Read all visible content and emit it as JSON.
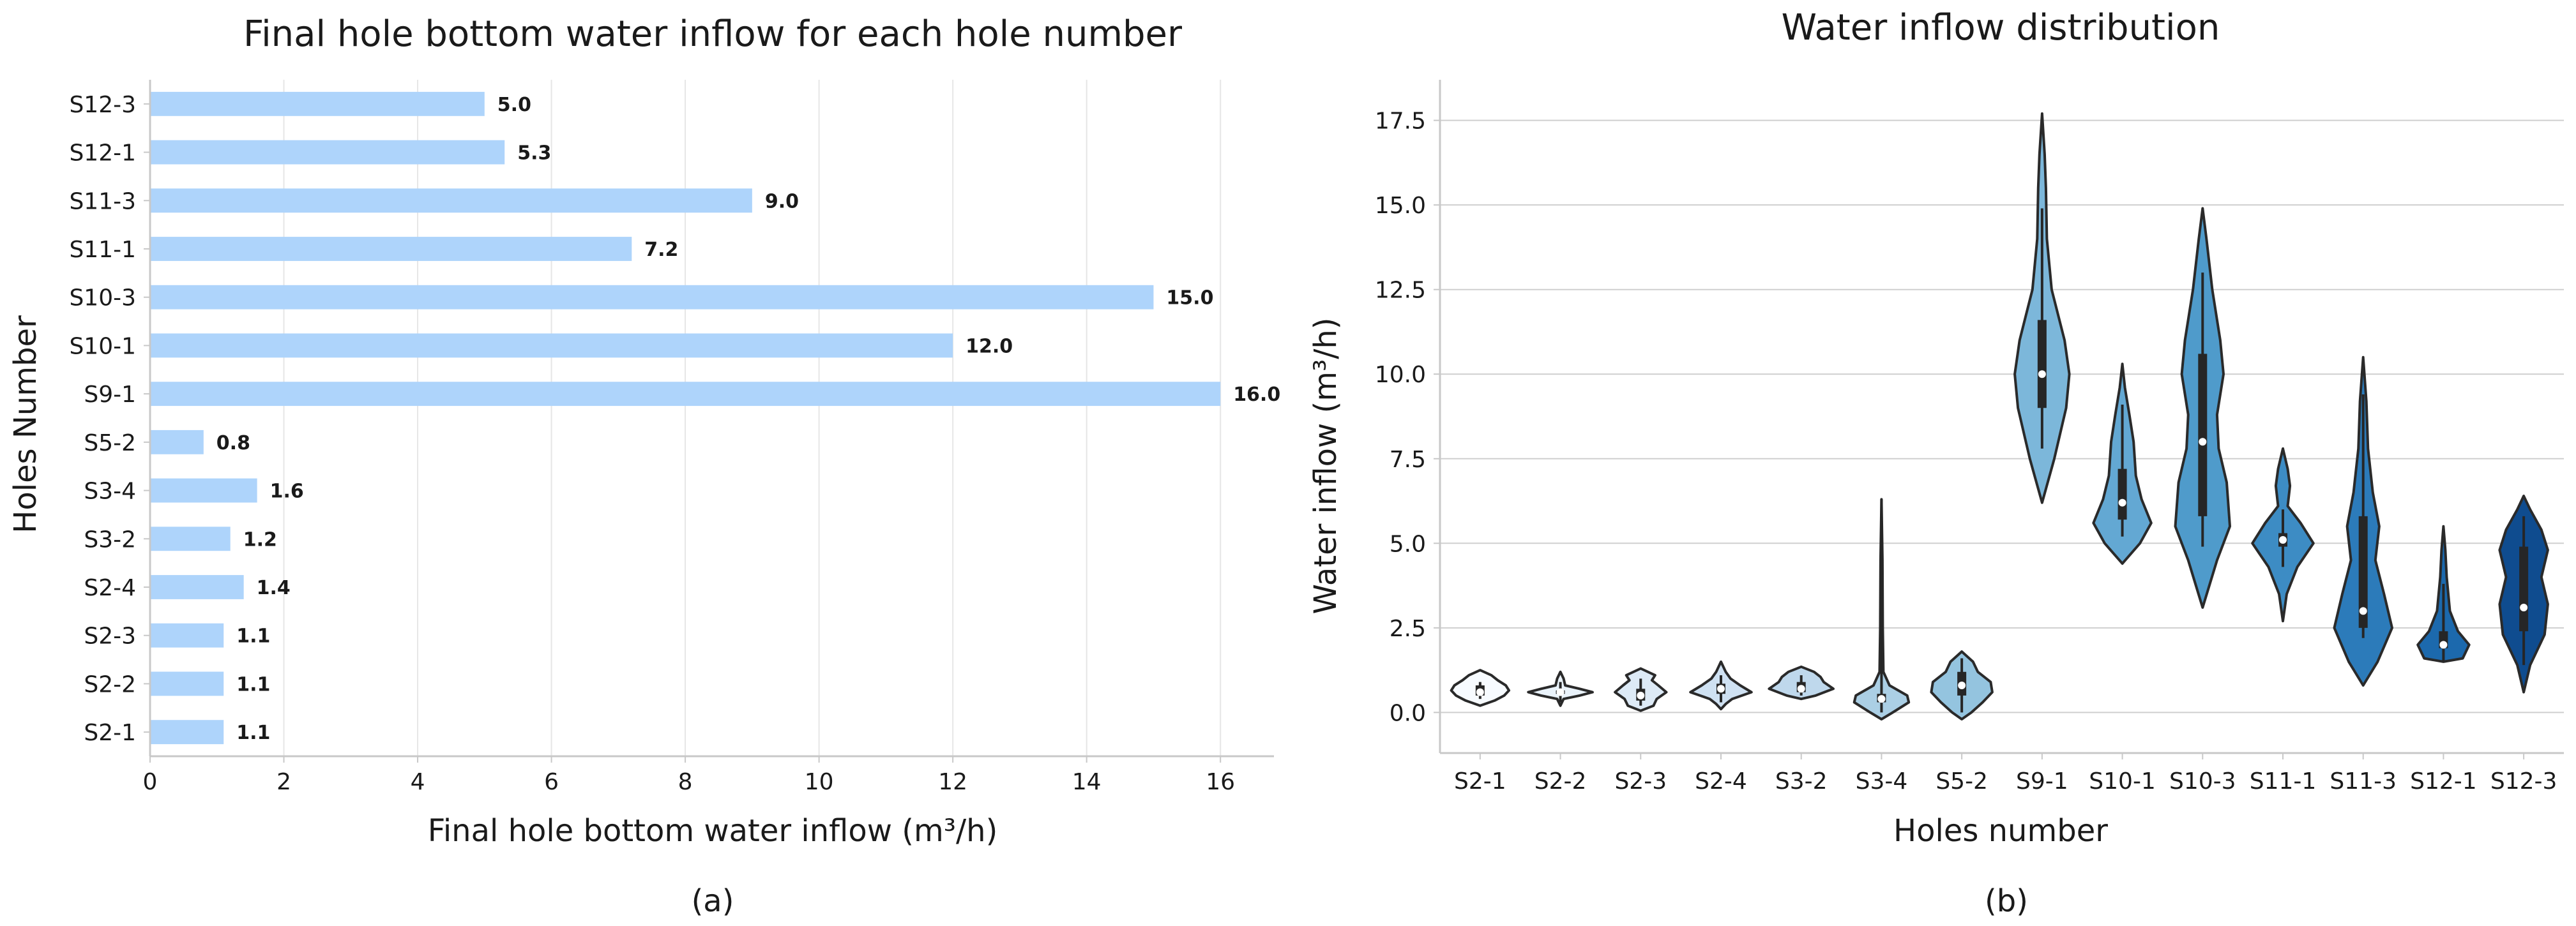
{
  "chart_data": [
    {
      "type": "bar",
      "orientation": "horizontal",
      "title": "Final hole bottom water inflow for each hole number",
      "xlabel": "Final hole bottom water inflow (m³/h)",
      "ylabel": "Holes Number",
      "caption": "(a)",
      "categories": [
        "S2-1",
        "S2-2",
        "S2-3",
        "S2-4",
        "S3-2",
        "S3-4",
        "S5-2",
        "S9-1",
        "S10-1",
        "S10-3",
        "S11-1",
        "S11-3",
        "S12-1",
        "S12-3"
      ],
      "values": [
        1.1,
        1.1,
        1.1,
        1.4,
        1.2,
        1.6,
        0.8,
        16.0,
        12.0,
        15.0,
        7.2,
        9.0,
        5.3,
        5.0
      ],
      "value_labels": [
        "1.1",
        "1.1",
        "1.1",
        "1.4",
        "1.2",
        "1.6",
        "0.8",
        "16.0",
        "12.0",
        "15.0",
        "7.2",
        "9.0",
        "5.3",
        "5.0"
      ],
      "xlim": [
        0,
        16.8
      ],
      "xticks": [
        0,
        2,
        4,
        6,
        8,
        10,
        12,
        14,
        16
      ],
      "xtick_labels": [
        "0",
        "2",
        "4",
        "6",
        "8",
        "10",
        "12",
        "14",
        "16"
      ],
      "grid": "vertical",
      "bar_color": "#aed4fb"
    },
    {
      "type": "violin",
      "title": "Water inflow distribution",
      "xlabel": "Holes number",
      "ylabel": "Water inflow (m³/h)",
      "caption": "(b)",
      "categories": [
        "S2-1",
        "S2-2",
        "S2-3",
        "S2-4",
        "S3-2",
        "S3-4",
        "S5-2",
        "S9-1",
        "S10-1",
        "S10-3",
        "S11-1",
        "S11-3",
        "S12-1",
        "S12-3"
      ],
      "ylim": [
        -1.2,
        18.7
      ],
      "yticks": [
        0.0,
        2.5,
        5.0,
        7.5,
        10.0,
        12.5,
        15.0,
        17.5
      ],
      "ytick_labels": [
        "0.0",
        "2.5",
        "5.0",
        "7.5",
        "10.0",
        "12.5",
        "15.0",
        "17.5"
      ],
      "grid": "horizontal",
      "violins": [
        {
          "name": "S2-1",
          "color": "#f7fbff",
          "median": 0.6,
          "q1": 0.5,
          "q3": 0.8,
          "whisker_low": 0.4,
          "whisker_high": 0.9,
          "profile": [
            [
              0.2,
              0.0
            ],
            [
              0.35,
              0.45
            ],
            [
              0.5,
              0.75
            ],
            [
              0.65,
              0.9
            ],
            [
              0.8,
              0.8
            ],
            [
              0.95,
              0.55
            ],
            [
              1.1,
              0.35
            ],
            [
              1.25,
              0.0
            ]
          ]
        },
        {
          "name": "S2-2",
          "color": "#eaf3fb",
          "median": 0.6,
          "q1": 0.55,
          "q3": 0.65,
          "whisker_low": 0.3,
          "whisker_high": 0.9,
          "profile": [
            [
              0.2,
              0.0
            ],
            [
              0.4,
              0.1
            ],
            [
              0.5,
              0.6
            ],
            [
              0.6,
              1.0
            ],
            [
              0.7,
              0.6
            ],
            [
              0.8,
              0.15
            ],
            [
              1.0,
              0.1
            ],
            [
              1.2,
              0.0
            ]
          ]
        },
        {
          "name": "S2-3",
          "color": "#ddeaf6",
          "median": 0.5,
          "q1": 0.35,
          "q3": 0.7,
          "whisker_low": 0.2,
          "whisker_high": 1.0,
          "profile": [
            [
              0.05,
              0.0
            ],
            [
              0.2,
              0.4
            ],
            [
              0.4,
              0.5
            ],
            [
              0.6,
              0.8
            ],
            [
              0.8,
              0.55
            ],
            [
              0.95,
              0.35
            ],
            [
              1.1,
              0.45
            ],
            [
              1.3,
              0.0
            ]
          ]
        },
        {
          "name": "S2-4",
          "color": "#cfe1f2",
          "median": 0.7,
          "q1": 0.55,
          "q3": 0.85,
          "whisker_low": 0.3,
          "whisker_high": 1.1,
          "profile": [
            [
              0.1,
              0.0
            ],
            [
              0.25,
              0.15
            ],
            [
              0.4,
              0.35
            ],
            [
              0.6,
              0.95
            ],
            [
              0.8,
              0.6
            ],
            [
              1.0,
              0.3
            ],
            [
              1.2,
              0.15
            ],
            [
              1.5,
              0.0
            ]
          ]
        },
        {
          "name": "S3-2",
          "color": "#bfd8ec",
          "median": 0.7,
          "q1": 0.6,
          "q3": 0.9,
          "whisker_low": 0.5,
          "whisker_high": 1.1,
          "profile": [
            [
              0.4,
              0.0
            ],
            [
              0.5,
              0.45
            ],
            [
              0.7,
              1.0
            ],
            [
              0.9,
              0.7
            ],
            [
              1.05,
              0.6
            ],
            [
              1.2,
              0.4
            ],
            [
              1.35,
              0.0
            ]
          ]
        },
        {
          "name": "S3-4",
          "color": "#abcfe5",
          "median": 0.4,
          "q1": 0.3,
          "q3": 0.55,
          "whisker_low": 0.0,
          "whisker_high": 6.3,
          "profile": [
            [
              -0.2,
              0.0
            ],
            [
              0.0,
              0.35
            ],
            [
              0.3,
              0.85
            ],
            [
              0.5,
              0.8
            ],
            [
              0.8,
              0.25
            ],
            [
              1.2,
              0.06
            ],
            [
              2.5,
              0.04
            ],
            [
              4.5,
              0.03
            ],
            [
              6.3,
              0.0
            ]
          ]
        },
        {
          "name": "S5-2",
          "color": "#94c4df",
          "median": 0.8,
          "q1": 0.5,
          "q3": 1.2,
          "whisker_low": 0.0,
          "whisker_high": 1.6,
          "profile": [
            [
              -0.2,
              0.0
            ],
            [
              0.0,
              0.3
            ],
            [
              0.3,
              0.65
            ],
            [
              0.6,
              0.95
            ],
            [
              0.9,
              0.9
            ],
            [
              1.2,
              0.5
            ],
            [
              1.5,
              0.35
            ],
            [
              1.8,
              0.0
            ]
          ]
        },
        {
          "name": "S9-1",
          "color": "#7cb7da",
          "median": 10.0,
          "q1": 9.0,
          "q3": 11.6,
          "whisker_low": 7.8,
          "whisker_high": 14.9,
          "profile": [
            [
              6.2,
              0.0
            ],
            [
              7.5,
              0.38
            ],
            [
              9.0,
              0.75
            ],
            [
              10.0,
              0.85
            ],
            [
              11.0,
              0.7
            ],
            [
              12.5,
              0.3
            ],
            [
              14.0,
              0.15
            ],
            [
              15.5,
              0.12
            ],
            [
              16.5,
              0.08
            ],
            [
              17.7,
              0.0
            ]
          ]
        },
        {
          "name": "S10-1",
          "color": "#63a8d3",
          "median": 6.2,
          "q1": 5.7,
          "q3": 7.2,
          "whisker_low": 5.2,
          "whisker_high": 9.1,
          "profile": [
            [
              4.4,
              0.0
            ],
            [
              5.0,
              0.55
            ],
            [
              5.6,
              0.9
            ],
            [
              6.3,
              0.6
            ],
            [
              7.0,
              0.42
            ],
            [
              8.0,
              0.35
            ],
            [
              8.8,
              0.22
            ],
            [
              9.6,
              0.08
            ],
            [
              10.3,
              0.0
            ]
          ]
        },
        {
          "name": "S10-3",
          "color": "#4f9bcb",
          "median": 8.0,
          "q1": 5.8,
          "q3": 10.6,
          "whisker_low": 4.9,
          "whisker_high": 13.0,
          "profile": [
            [
              3.1,
              0.0
            ],
            [
              4.5,
              0.45
            ],
            [
              5.5,
              0.85
            ],
            [
              6.8,
              0.75
            ],
            [
              7.8,
              0.5
            ],
            [
              8.8,
              0.45
            ],
            [
              10.0,
              0.65
            ],
            [
              11.0,
              0.55
            ],
            [
              12.5,
              0.3
            ],
            [
              14.0,
              0.12
            ],
            [
              14.9,
              0.0
            ]
          ]
        },
        {
          "name": "S11-1",
          "color": "#3d8cc4",
          "median": 5.1,
          "q1": 4.9,
          "q3": 5.3,
          "whisker_low": 4.3,
          "whisker_high": 6.0,
          "profile": [
            [
              2.7,
              0.0
            ],
            [
              3.5,
              0.12
            ],
            [
              4.3,
              0.45
            ],
            [
              5.0,
              0.95
            ],
            [
              5.6,
              0.55
            ],
            [
              6.1,
              0.15
            ],
            [
              6.7,
              0.22
            ],
            [
              7.2,
              0.15
            ],
            [
              7.8,
              0.0
            ]
          ]
        },
        {
          "name": "S11-3",
          "color": "#2c7bba",
          "median": 3.0,
          "q1": 2.5,
          "q3": 5.8,
          "whisker_low": 2.2,
          "whisker_high": 9.4,
          "profile": [
            [
              0.8,
              0.0
            ],
            [
              1.5,
              0.45
            ],
            [
              2.5,
              0.9
            ],
            [
              3.5,
              0.65
            ],
            [
              4.5,
              0.38
            ],
            [
              5.5,
              0.5
            ],
            [
              6.5,
              0.3
            ],
            [
              7.8,
              0.15
            ],
            [
              9.2,
              0.1
            ],
            [
              10.5,
              0.0
            ]
          ]
        },
        {
          "name": "S12-1",
          "color": "#1c69ad",
          "median": 2.0,
          "q1": 1.9,
          "q3": 2.4,
          "whisker_low": 1.5,
          "whisker_high": 3.8,
          "profile": [
            [
              1.5,
              0.0
            ],
            [
              1.6,
              0.6
            ],
            [
              2.0,
              0.8
            ],
            [
              2.4,
              0.45
            ],
            [
              3.0,
              0.2
            ],
            [
              4.0,
              0.1
            ],
            [
              4.8,
              0.06
            ],
            [
              5.5,
              0.0
            ]
          ]
        },
        {
          "name": "S12-3",
          "color": "#0f4c8f",
          "median": 3.1,
          "q1": 2.4,
          "q3": 4.9,
          "whisker_low": 1.4,
          "whisker_high": 5.8,
          "profile": [
            [
              0.6,
              0.0
            ],
            [
              1.4,
              0.2
            ],
            [
              2.3,
              0.65
            ],
            [
              3.2,
              0.75
            ],
            [
              4.0,
              0.55
            ],
            [
              4.8,
              0.75
            ],
            [
              5.4,
              0.55
            ],
            [
              6.0,
              0.2
            ],
            [
              6.4,
              0.0
            ]
          ]
        }
      ]
    }
  ]
}
